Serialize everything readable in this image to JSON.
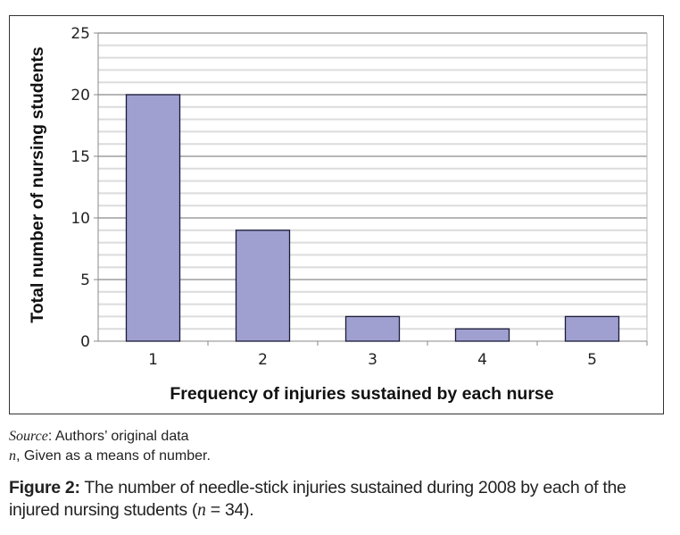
{
  "chart_data": {
    "type": "bar",
    "categories": [
      "1",
      "2",
      "3",
      "4",
      "5"
    ],
    "values": [
      20,
      9,
      2,
      1,
      2
    ],
    "xlabel": "Frequency of injuries sustained by each nurse",
    "ylabel": "Total number of nursing students",
    "ylim": [
      0,
      25
    ],
    "yticks": [
      "0",
      "5",
      "10",
      "15",
      "20",
      "25"
    ],
    "grid": "major every 5, minor every 1",
    "legend": "none",
    "colors": {
      "bar": "#a0a0d0",
      "bar_edge": "#1a1a3a",
      "major_grid": "#8a8a8a",
      "minor_grid": "#dcdcdc"
    }
  },
  "notes": {
    "source_label": "Source",
    "source_text": ": Authors’ original data",
    "n_label": "n",
    "n_text": ", Given as a means of number."
  },
  "caption": {
    "label": "Figure 2:",
    "text_a": " The number of needle-stick injuries sustained during 2008 by each of the injured nursing students (",
    "n": "n",
    "text_b": " = 34)."
  }
}
